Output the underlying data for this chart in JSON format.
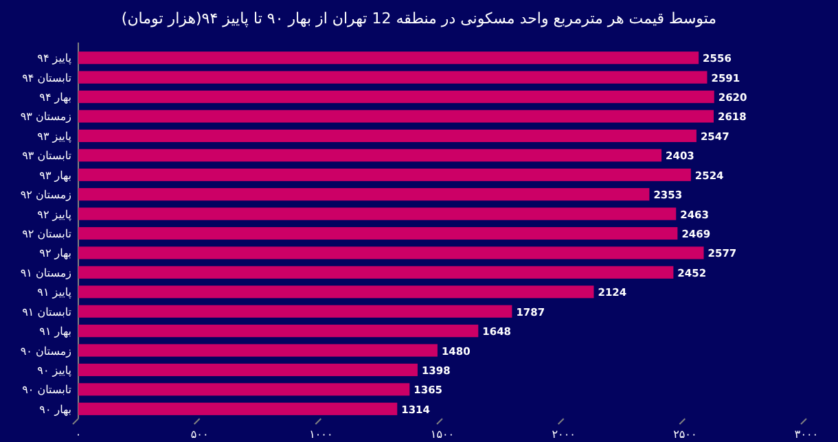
{
  "chart_data": {
    "type": "bar",
    "orientation": "horizontal",
    "title": "متوسط قیمت هر مترمربع واحد مسکونی در منطقه 12 تهران از بهار ۹۰ تا پاییز ۹۴(هزار تومان)",
    "categories": [
      "پاییز ۹۴",
      "تابستان ۹۴",
      "بهار ۹۴",
      "زمستان ۹۳",
      "پاییز ۹۳",
      "تابستان ۹۳",
      "بهار ۹۳",
      "زمستان ۹۲",
      "پاییز ۹۲",
      "تابستان ۹۲",
      "بهار ۹۲",
      "زمستان ۹۱",
      "پاییز ۹۱",
      "تابستان ۹۱",
      "بهار ۹۱",
      "زمستان ۹۰",
      "پاییز ۹۰",
      "تابستان ۹۰",
      "بهار ۹۰"
    ],
    "values": [
      2556,
      2591,
      2620,
      2618,
      2547,
      2403,
      2524,
      2353,
      2463,
      2469,
      2577,
      2452,
      2124,
      1787,
      1648,
      1480,
      1398,
      1365,
      1314
    ],
    "color": "#cc0066",
    "data_labels": true,
    "xlim": [
      0,
      3000
    ],
    "xticks": [
      {
        "value": 0,
        "label": "۰"
      },
      {
        "value": 500,
        "label": "۵۰۰"
      },
      {
        "value": 1000,
        "label": "۱۰۰۰"
      },
      {
        "value": 1500,
        "label": "۱۵۰۰"
      },
      {
        "value": 2000,
        "label": "۲۰۰۰"
      },
      {
        "value": 2500,
        "label": "۲۵۰۰"
      },
      {
        "value": 3000,
        "label": "۳۰۰۰"
      }
    ]
  }
}
